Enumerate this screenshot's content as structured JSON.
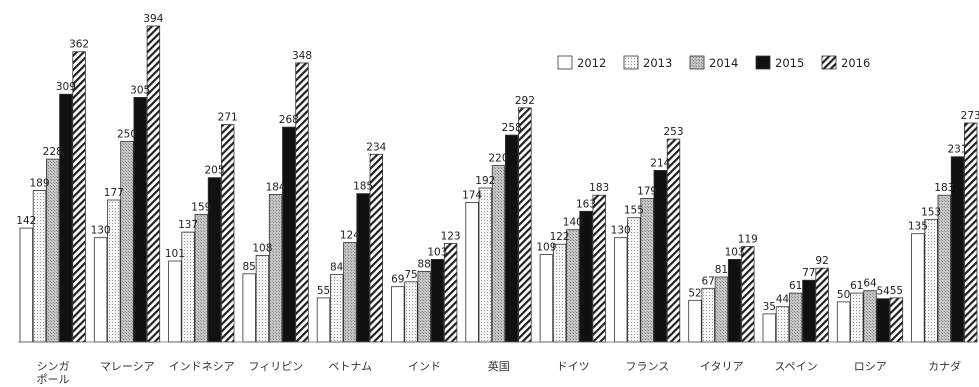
{
  "chart_data": {
    "type": "bar",
    "categories": [
      "シンガポール",
      "マレーシア",
      "インドネシア",
      "フィリピン",
      "ベトナム",
      "インド",
      "英国",
      "ドイツ",
      "フランス",
      "イタリア",
      "スペイン",
      "ロシア",
      "カナダ"
    ],
    "series": [
      {
        "name": "2012",
        "values": [
          142,
          130,
          101,
          85,
          55,
          69,
          174,
          109,
          130,
          52,
          35,
          50,
          135
        ]
      },
      {
        "name": "2013",
        "values": [
          189,
          177,
          137,
          108,
          84,
          75,
          192,
          122,
          155,
          67,
          44,
          61,
          153
        ]
      },
      {
        "name": "2014",
        "values": [
          228,
          250,
          159,
          184,
          124,
          88,
          220,
          140,
          179,
          81,
          61,
          64,
          183
        ]
      },
      {
        "name": "2015",
        "values": [
          309,
          305,
          205,
          268,
          185,
          103,
          258,
          163,
          214,
          103,
          77,
          54,
          231
        ]
      },
      {
        "name": "2016",
        "values": [
          362,
          394,
          271,
          348,
          234,
          123,
          292,
          183,
          253,
          119,
          92,
          55,
          273
        ]
      }
    ],
    "ylim": [
      0,
      394
    ],
    "grid": false,
    "legend": "top-right",
    "colors": {
      "2012": "#ffffff",
      "2013": "#efefef",
      "2014": "#b8b8b8",
      "2015": "#111111",
      "2016": "#ffffff"
    },
    "patterns": {
      "2013": "dotted",
      "2016": "diagonal-hatch"
    }
  }
}
